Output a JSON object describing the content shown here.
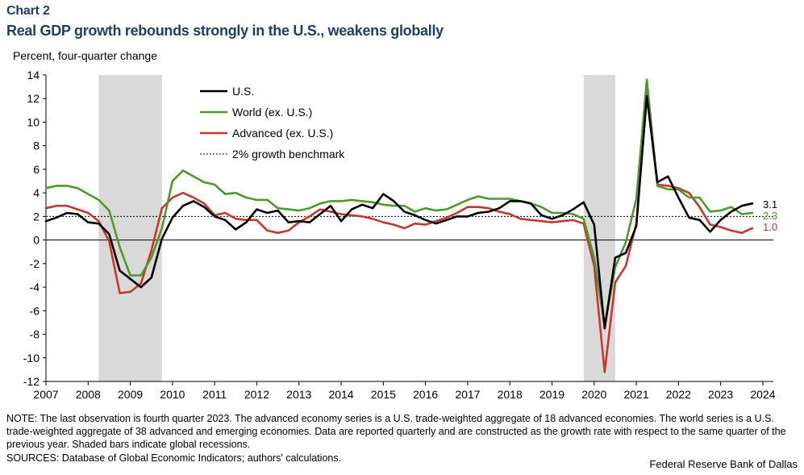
{
  "header": {
    "chart_number": "Chart 2",
    "title": "Real GDP growth rebounds strongly in the U.S., weakens globally",
    "unit": "Percent, four-quarter change"
  },
  "footer": {
    "note": "NOTE: The last observation is fourth quarter 2023. The advanced economy series is a U.S. trade-weighted aggregate of 18 advanced economies. The world series is a U.S. trade-weighted aggregate of 38 advanced and emerging economies. Data are reported quarterly and are constructed as the growth rate with respect to the same quarter of the previous year. Shaded bars indicate global recessions.",
    "sources": "SOURCES: Database of Global Economic Indicators; authors' calculations.",
    "credit": "Federal Reserve Bank of Dallas"
  },
  "colors": {
    "us": "#000000",
    "world": "#4c9a2a",
    "advanced": "#c8372d",
    "recession": "#d9d9d9",
    "title": "#1e3f66"
  },
  "chart_data": {
    "type": "line",
    "title": "Real GDP growth rebounds strongly in the U.S., weakens globally",
    "ylabel": "Percent, four-quarter change",
    "xlabel": "",
    "ylim": [
      -12,
      14
    ],
    "yticks": [
      -12,
      -10,
      -8,
      -6,
      -4,
      -2,
      0,
      2,
      4,
      6,
      8,
      10,
      12,
      14
    ],
    "xlim": [
      2007,
      2024.25
    ],
    "xticks": [
      "2007",
      "2008",
      "2009",
      "2010",
      "2011",
      "2012",
      "2013",
      "2014",
      "2015",
      "2016",
      "2017",
      "2018",
      "2019",
      "2020",
      "2021",
      "2022",
      "2023",
      "2024"
    ],
    "grid": false,
    "legend_position": "top-center",
    "benchmark": {
      "label": "2% growth benchmark",
      "value": 2
    },
    "recessions": [
      {
        "start": 2008.25,
        "end": 2009.75
      },
      {
        "start": 2019.75,
        "end": 2020.5
      }
    ],
    "x_start": 2007.0,
    "x_step": 0.25,
    "series": [
      {
        "name": "U.S.",
        "color": "#000000",
        "end_label": "3.1",
        "values": [
          1.6,
          1.9,
          2.3,
          2.2,
          1.5,
          1.4,
          0.5,
          -2.6,
          -3.3,
          -4.0,
          -3.2,
          0.1,
          1.9,
          2.9,
          3.3,
          2.8,
          2.0,
          1.7,
          0.9,
          1.5,
          2.6,
          2.3,
          2.5,
          1.5,
          1.6,
          1.5,
          2.2,
          2.9,
          1.6,
          2.6,
          3.0,
          2.7,
          3.9,
          3.3,
          2.4,
          2.1,
          1.7,
          1.4,
          1.7,
          2.0,
          2.0,
          2.3,
          2.4,
          2.7,
          3.3,
          3.3,
          3.1,
          2.1,
          1.8,
          2.1,
          2.6,
          3.2,
          1.3,
          -7.5,
          -1.5,
          -1.1,
          1.2,
          12.2,
          4.9,
          5.4,
          3.6,
          1.9,
          1.7,
          0.7,
          1.7,
          2.4,
          2.9,
          3.1
        ]
      },
      {
        "name": "World (ex. U.S.)",
        "color": "#4c9a2a",
        "end_label": "2.3",
        "values": [
          4.4,
          4.6,
          4.6,
          4.4,
          3.9,
          3.4,
          2.5,
          -0.6,
          -3.0,
          -3.0,
          -1.5,
          1.0,
          5.0,
          5.9,
          5.4,
          4.9,
          4.7,
          3.9,
          4.0,
          3.6,
          3.4,
          3.4,
          2.7,
          2.6,
          2.5,
          2.7,
          3.1,
          3.3,
          3.3,
          3.4,
          3.3,
          3.2,
          3.0,
          2.9,
          2.9,
          2.4,
          2.7,
          2.5,
          2.6,
          3.0,
          3.4,
          3.7,
          3.5,
          3.5,
          3.5,
          3.3,
          3.1,
          2.8,
          2.3,
          2.3,
          2.2,
          1.8,
          -1.5,
          -7.3,
          -2.3,
          -0.2,
          3.5,
          13.6,
          4.6,
          4.3,
          4.3,
          3.6,
          3.6,
          2.4,
          2.5,
          2.8,
          2.2,
          2.3
        ]
      },
      {
        "name": "Advanced (ex. U.S.)",
        "color": "#c8372d",
        "end_label": "1.0",
        "values": [
          2.7,
          2.9,
          2.9,
          2.6,
          2.3,
          1.6,
          -0.1,
          -4.5,
          -4.4,
          -3.7,
          -0.9,
          2.7,
          3.6,
          4.0,
          3.6,
          3.1,
          2.1,
          2.3,
          1.8,
          1.7,
          1.7,
          0.8,
          0.6,
          0.8,
          1.5,
          2.0,
          2.6,
          2.4,
          2.2,
          2.1,
          2.0,
          1.8,
          1.5,
          1.3,
          1.0,
          1.4,
          1.3,
          1.6,
          1.9,
          2.3,
          2.8,
          2.8,
          2.7,
          2.4,
          2.2,
          1.8,
          1.7,
          1.6,
          1.5,
          1.6,
          1.7,
          1.4,
          -2.2,
          -11.2,
          -3.6,
          -2.2,
          1.4,
          12.5,
          4.7,
          4.6,
          4.4,
          4.0,
          2.8,
          1.3,
          1.1,
          0.8,
          0.6,
          1.0
        ]
      }
    ]
  }
}
